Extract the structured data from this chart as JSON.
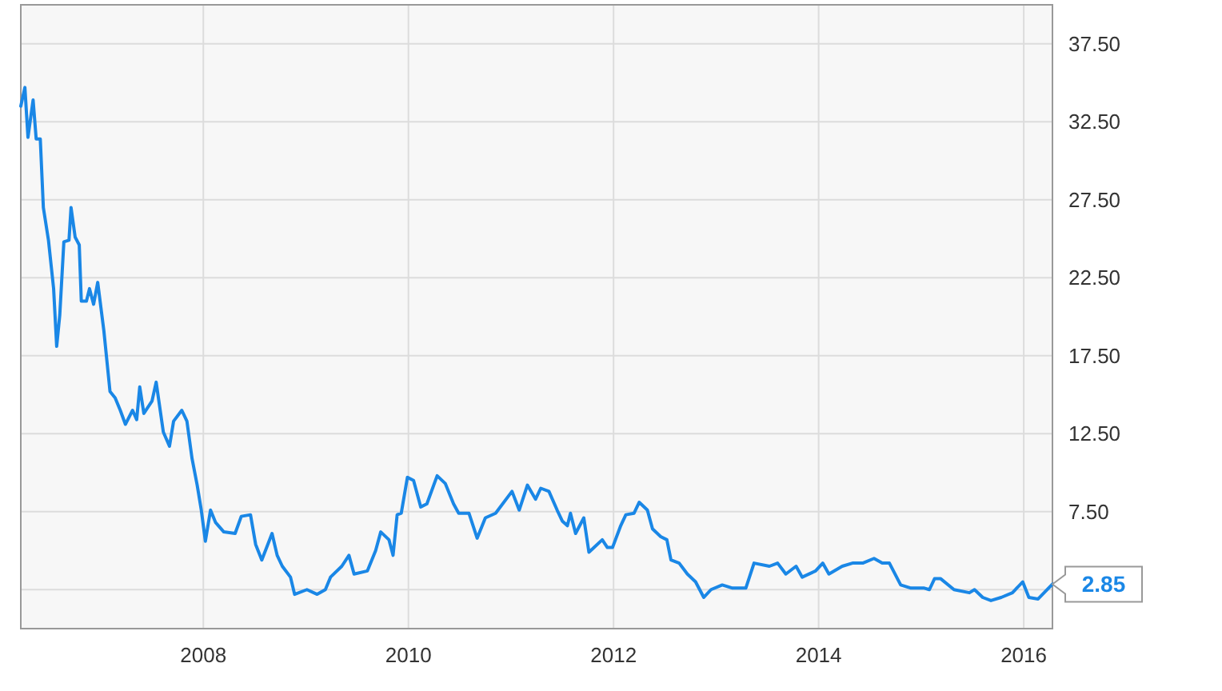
{
  "chart_data": {
    "type": "line",
    "xlim": [
      2006.22,
      2016.28
    ],
    "xticks": [
      2008,
      2010,
      2012,
      2014,
      2016
    ],
    "ylim": [
      0,
      40
    ],
    "yticks": [
      {
        "value": 2.5,
        "label": null
      },
      {
        "value": 7.5,
        "label": "7.50"
      },
      {
        "value": 12.5,
        "label": "12.50"
      },
      {
        "value": 17.5,
        "label": "17.50"
      },
      {
        "value": 22.5,
        "label": "22.50"
      },
      {
        "value": 27.5,
        "label": "27.50"
      },
      {
        "value": 32.5,
        "label": "32.50"
      },
      {
        "value": 37.5,
        "label": "37.50"
      }
    ],
    "grid": true,
    "marker": "none",
    "line_style": "solid",
    "annotations": [
      {
        "text": "2.85",
        "x": 2016.28,
        "y": 2.85
      }
    ],
    "series": [
      {
        "color": "#1a87e6",
        "x": [
          2006.22,
          2006.26,
          2006.29,
          2006.34,
          2006.37,
          2006.41,
          2006.44,
          2006.49,
          2006.54,
          2006.57,
          2006.6,
          2006.64,
          2006.69,
          2006.71,
          2006.75,
          2006.79,
          2006.81,
          2006.86,
          2006.89,
          2006.93,
          2006.97,
          2007.03,
          2007.09,
          2007.14,
          2007.19,
          2007.24,
          2007.31,
          2007.35,
          2007.38,
          2007.42,
          2007.5,
          2007.54,
          2007.61,
          2007.67,
          2007.71,
          2007.79,
          2007.84,
          2007.89,
          2007.94,
          2007.98,
          2008.02,
          2008.07,
          2008.12,
          2008.2,
          2008.31,
          2008.37,
          2008.46,
          2008.51,
          2008.57,
          2008.67,
          2008.72,
          2008.77,
          2008.85,
          2008.89,
          2009.01,
          2009.11,
          2009.19,
          2009.24,
          2009.35,
          2009.42,
          2009.47,
          2009.6,
          2009.68,
          2009.73,
          2009.81,
          2009.85,
          2009.89,
          2009.93,
          2009.99,
          2010.05,
          2010.12,
          2010.18,
          2010.28,
          2010.36,
          2010.44,
          2010.49,
          2010.59,
          2010.67,
          2010.75,
          2010.85,
          2011.01,
          2011.08,
          2011.16,
          2011.24,
          2011.29,
          2011.37,
          2011.45,
          2011.5,
          2011.55,
          2011.58,
          2011.63,
          2011.71,
          2011.76,
          2011.81,
          2011.89,
          2011.94,
          2011.99,
          2012.07,
          2012.12,
          2012.2,
          2012.25,
          2012.33,
          2012.38,
          2012.46,
          2012.52,
          2012.56,
          2012.64,
          2012.72,
          2012.8,
          2012.88,
          2012.95,
          2013.06,
          2013.16,
          2013.29,
          2013.37,
          2013.52,
          2013.6,
          2013.68,
          2013.78,
          2013.84,
          2013.97,
          2014.04,
          2014.1,
          2014.23,
          2014.33,
          2014.43,
          2014.54,
          2014.62,
          2014.69,
          2014.8,
          2014.9,
          2015.03,
          2015.08,
          2015.13,
          2015.19,
          2015.32,
          2015.47,
          2015.52,
          2015.6,
          2015.68,
          2015.78,
          2015.89,
          2015.99,
          2016.05,
          2016.14,
          2016.28
        ],
        "values": [
          33.5,
          34.7,
          31.5,
          33.9,
          31.4,
          31.4,
          27.0,
          24.9,
          21.8,
          18.1,
          20.1,
          24.8,
          24.9,
          27.0,
          25.1,
          24.6,
          21.0,
          21.0,
          21.8,
          20.8,
          22.2,
          19.1,
          15.2,
          14.8,
          14.0,
          13.1,
          14.0,
          13.4,
          15.5,
          13.8,
          14.6,
          15.8,
          12.6,
          11.7,
          13.3,
          14.0,
          13.3,
          10.9,
          9.2,
          7.6,
          5.6,
          7.6,
          6.8,
          6.2,
          6.1,
          7.2,
          7.3,
          5.4,
          4.4,
          6.1,
          4.7,
          4.0,
          3.3,
          2.2,
          2.5,
          2.2,
          2.5,
          3.3,
          4.0,
          4.7,
          3.5,
          3.7,
          5.0,
          6.2,
          5.7,
          4.7,
          7.3,
          7.4,
          9.7,
          9.5,
          7.8,
          8.0,
          9.8,
          9.3,
          8.0,
          7.4,
          7.4,
          5.8,
          7.1,
          7.4,
          8.8,
          7.6,
          9.2,
          8.3,
          9.0,
          8.8,
          7.6,
          6.9,
          6.6,
          7.4,
          6.1,
          7.1,
          4.9,
          5.2,
          5.7,
          5.2,
          5.2,
          6.6,
          7.3,
          7.4,
          8.1,
          7.6,
          6.4,
          5.9,
          5.7,
          4.4,
          4.2,
          3.5,
          3.0,
          2.0,
          2.5,
          2.8,
          2.6,
          2.6,
          4.2,
          4.0,
          4.2,
          3.5,
          4.0,
          3.3,
          3.7,
          4.2,
          3.5,
          4.0,
          4.2,
          4.2,
          4.5,
          4.2,
          4.2,
          2.8,
          2.6,
          2.6,
          2.5,
          3.2,
          3.2,
          2.5,
          2.3,
          2.5,
          2.0,
          1.8,
          2.0,
          2.3,
          3.0,
          2.0,
          1.9,
          2.85
        ]
      }
    ]
  }
}
